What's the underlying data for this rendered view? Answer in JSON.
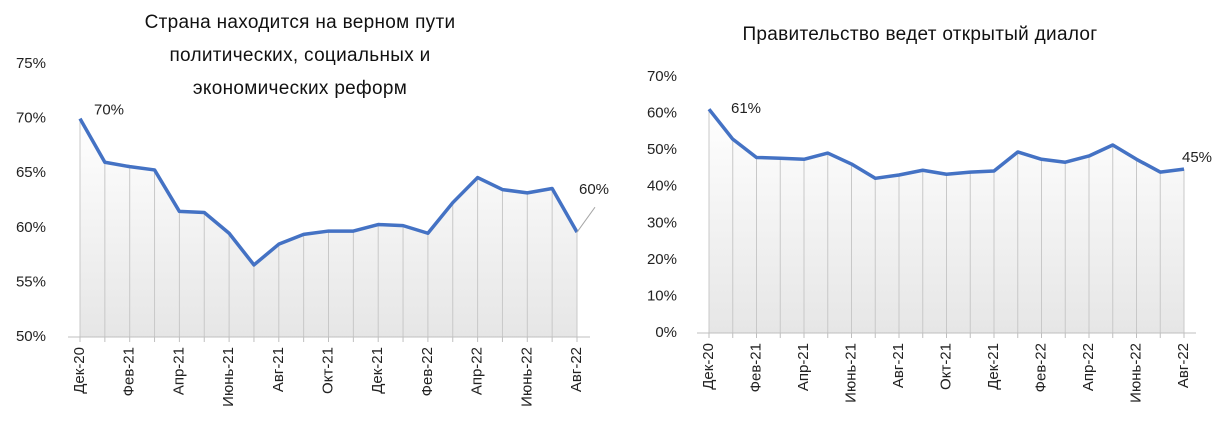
{
  "chart_data": [
    {
      "type": "line",
      "title": "Страна находится на верном пути политических, социальных и экономических реформ",
      "categories": [
        "Дек-20",
        null,
        "Фев-21",
        null,
        "Апр-21",
        null,
        "Июнь-21",
        null,
        "Авг-21",
        null,
        "Окт-21",
        null,
        "Дек-21",
        null,
        "Фев-22",
        null,
        "Апр-22",
        null,
        "Июнь-22",
        null,
        "Авг-22"
      ],
      "values": [
        70,
        66.0,
        65.6,
        65.3,
        61.5,
        61.4,
        59.5,
        56.6,
        58.5,
        59.4,
        59.7,
        59.7,
        60.3,
        60.2,
        59.5,
        62.3,
        64.6,
        63.5,
        63.2,
        63.6,
        59.6
      ],
      "value_labels": [
        "70%",
        null,
        null,
        null,
        null,
        null,
        null,
        null,
        null,
        null,
        null,
        null,
        null,
        null,
        null,
        null,
        null,
        null,
        null,
        null,
        "60%"
      ],
      "color": "#4472c4",
      "ylim": [
        50,
        75
      ],
      "yticks": [
        {
          "value": 50,
          "label": "50%"
        },
        {
          "value": 55,
          "label": "55%"
        },
        {
          "value": 60,
          "label": "60%"
        },
        {
          "value": 65,
          "label": "65%"
        },
        {
          "value": 70,
          "label": "70%"
        },
        {
          "value": 75,
          "label": "75%"
        }
      ]
    },
    {
      "type": "line",
      "title": "Правительство ведет открытый диалог",
      "categories": [
        "Дек-20",
        null,
        "Фев-21",
        null,
        "Апр-21",
        null,
        "Июнь-21",
        null,
        "Авг-21",
        null,
        "Окт-21",
        null,
        "Дек-21",
        null,
        "Фев-22",
        null,
        "Апр-22",
        null,
        "Июнь-22",
        null,
        "Авг-22"
      ],
      "values": [
        61.2,
        53,
        48,
        47.8,
        47.5,
        49.2,
        46.2,
        42.3,
        43.2,
        44.5,
        43.4,
        44,
        44.3,
        49.5,
        47.5,
        46.7,
        48.4,
        51.4,
        47.5,
        44,
        44.8
      ],
      "value_labels": [
        "61%",
        null,
        null,
        null,
        null,
        null,
        null,
        null,
        null,
        null,
        null,
        null,
        null,
        null,
        null,
        null,
        null,
        null,
        null,
        null,
        "45%"
      ],
      "color": "#4472c4",
      "ylim": [
        0,
        70
      ],
      "yticks": [
        {
          "value": 0,
          "label": "0%"
        },
        {
          "value": 10,
          "label": "10%"
        },
        {
          "value": 20,
          "label": "20%"
        },
        {
          "value": 30,
          "label": "30%"
        },
        {
          "value": 40,
          "label": "40%"
        },
        {
          "value": 50,
          "label": "50%"
        },
        {
          "value": 60,
          "label": "60%"
        },
        {
          "value": 70,
          "label": "70%"
        }
      ]
    }
  ]
}
